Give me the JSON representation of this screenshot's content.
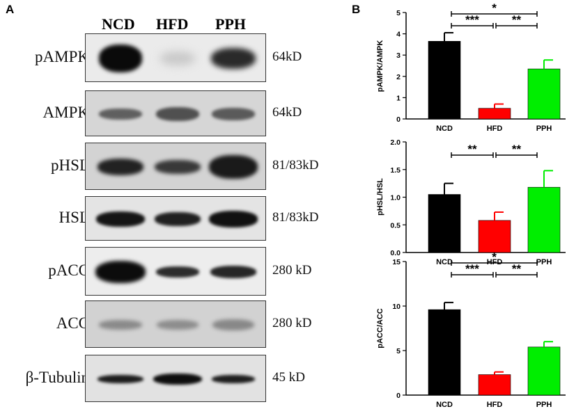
{
  "panels": {
    "a": "A",
    "b": "B"
  },
  "blot": {
    "lanes": [
      "NCD",
      "HFD",
      "PPH"
    ],
    "rows": [
      {
        "protein": "pAMPK",
        "size": "64kD"
      },
      {
        "protein": "AMPK",
        "size": "64kD"
      },
      {
        "protein": "pHSL",
        "size": "81/83kD"
      },
      {
        "protein": "HSL",
        "size": "81/83kD"
      },
      {
        "protein": "pACC",
        "size": "280 kD"
      },
      {
        "protein": "ACC",
        "size": "280 kD"
      },
      {
        "protein": "β-Tubulin",
        "size": "45 kD"
      }
    ]
  },
  "colors": {
    "NCD": "#000000",
    "HFD": "#ff0000",
    "PPH": "#00ee00"
  },
  "chart_data": [
    {
      "type": "bar",
      "categories": [
        "NCD",
        "HFD",
        "PPH"
      ],
      "values": [
        3.65,
        0.5,
        2.35
      ],
      "errors": [
        0.4,
        0.2,
        0.42
      ],
      "ylabel": "pAMPK/AMPK",
      "ylim": [
        0,
        5
      ],
      "yticks": [
        "0",
        "1",
        "2",
        "3",
        "4",
        "5"
      ],
      "significance": [
        {
          "from": "NCD",
          "to": "HFD",
          "label": "***"
        },
        {
          "from": "HFD",
          "to": "PPH",
          "label": "**"
        },
        {
          "from": "NCD",
          "to": "PPH",
          "label": "*"
        }
      ]
    },
    {
      "type": "bar",
      "categories": [
        "NCD",
        "HFD",
        "PPH"
      ],
      "values": [
        1.05,
        0.58,
        1.18
      ],
      "errors": [
        0.2,
        0.15,
        0.3
      ],
      "ylabel": "pHSL/HSL",
      "ylim": [
        0,
        2
      ],
      "yticks": [
        "0.0",
        "0.5",
        "1.0",
        "1.5",
        "2.0"
      ],
      "significance": [
        {
          "from": "NCD",
          "to": "HFD",
          "label": "**"
        },
        {
          "from": "HFD",
          "to": "PPH",
          "label": "**"
        }
      ]
    },
    {
      "type": "bar",
      "categories": [
        "NCD",
        "HFD",
        "PPH"
      ],
      "values": [
        9.6,
        2.3,
        5.4
      ],
      "errors": [
        0.8,
        0.3,
        0.6
      ],
      "ylabel": "pACC/ACC",
      "ylim": [
        0,
        15
      ],
      "yticks": [
        "0",
        "5",
        "10",
        "15"
      ],
      "significance": [
        {
          "from": "NCD",
          "to": "HFD",
          "label": "***"
        },
        {
          "from": "HFD",
          "to": "PPH",
          "label": "**"
        },
        {
          "from": "NCD",
          "to": "PPH",
          "label": "*"
        }
      ]
    }
  ]
}
